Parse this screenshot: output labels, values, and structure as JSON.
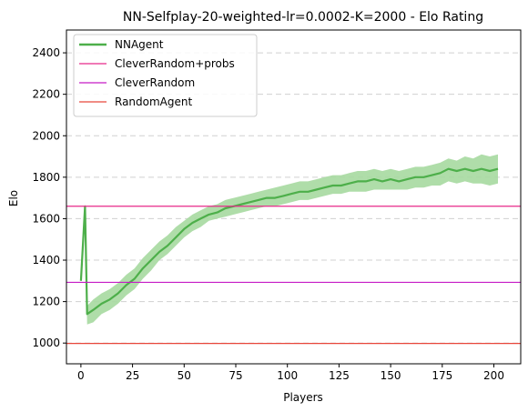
{
  "chart_data": {
    "type": "line",
    "title": "NN-Selfplay-20-weighted-lr=0.0002-K=2000 - Elo Rating",
    "xlabel": "Players",
    "ylabel": "Elo",
    "xlim": [
      -7,
      213
    ],
    "ylim": [
      900,
      2510
    ],
    "xticks": [
      0,
      25,
      50,
      75,
      100,
      125,
      150,
      175,
      200
    ],
    "yticks": [
      1000,
      1200,
      1400,
      1600,
      1800,
      2000,
      2200,
      2400
    ],
    "grid": "horizontal dashed",
    "legend_position": "top-left",
    "series": [
      {
        "name": "NNAgent",
        "color": "#4daf4a",
        "band_color": "#a6d9a0",
        "x": [
          0,
          2,
          3,
          6,
          10,
          14,
          18,
          22,
          26,
          30,
          34,
          38,
          42,
          46,
          50,
          54,
          58,
          62,
          66,
          70,
          74,
          78,
          82,
          86,
          90,
          94,
          98,
          102,
          106,
          110,
          114,
          118,
          122,
          126,
          130,
          134,
          138,
          142,
          146,
          150,
          154,
          158,
          162,
          166,
          170,
          174,
          178,
          182,
          186,
          190,
          194,
          198,
          202
        ],
        "y": [
          1300,
          1660,
          1140,
          1160,
          1190,
          1210,
          1240,
          1280,
          1310,
          1360,
          1400,
          1440,
          1470,
          1510,
          1550,
          1580,
          1600,
          1620,
          1630,
          1650,
          1660,
          1670,
          1680,
          1690,
          1700,
          1700,
          1710,
          1720,
          1730,
          1730,
          1740,
          1750,
          1760,
          1760,
          1770,
          1780,
          1780,
          1790,
          1780,
          1790,
          1780,
          1790,
          1800,
          1800,
          1810,
          1820,
          1840,
          1830,
          1840,
          1830,
          1840,
          1830,
          1840
        ],
        "lower": [
          1300,
          1655,
          1090,
          1100,
          1140,
          1160,
          1190,
          1230,
          1260,
          1310,
          1350,
          1400,
          1430,
          1470,
          1510,
          1540,
          1560,
          1590,
          1600,
          1610,
          1620,
          1630,
          1640,
          1650,
          1660,
          1660,
          1670,
          1680,
          1690,
          1690,
          1700,
          1710,
          1720,
          1720,
          1730,
          1730,
          1730,
          1740,
          1740,
          1740,
          1740,
          1740,
          1750,
          1750,
          1760,
          1760,
          1780,
          1770,
          1780,
          1770,
          1770,
          1760,
          1770
        ],
        "upper": [
          1300,
          1665,
          1180,
          1210,
          1240,
          1260,
          1290,
          1330,
          1360,
          1410,
          1450,
          1490,
          1520,
          1560,
          1590,
          1620,
          1640,
          1660,
          1670,
          1690,
          1700,
          1710,
          1720,
          1730,
          1740,
          1750,
          1760,
          1770,
          1780,
          1780,
          1790,
          1800,
          1810,
          1810,
          1820,
          1830,
          1830,
          1840,
          1830,
          1840,
          1830,
          1840,
          1850,
          1850,
          1860,
          1870,
          1890,
          1880,
          1900,
          1890,
          1910,
          1900,
          1910
        ]
      },
      {
        "name": "CleverRandom+probs",
        "color": "#e7298a",
        "constant": 1660
      },
      {
        "name": "CleverRandom",
        "color": "#c51bc5",
        "constant": 1293
      },
      {
        "name": "RandomAgent",
        "color": "#e8473b",
        "constant": 998
      }
    ]
  }
}
